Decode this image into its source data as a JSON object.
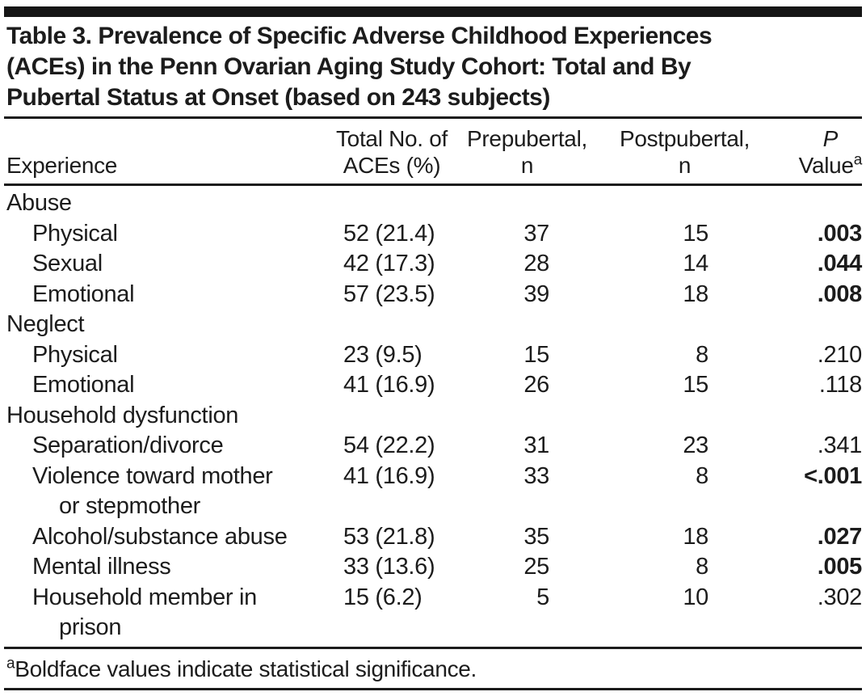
{
  "ink_color": "#1c1c1c",
  "title": {
    "lines": [
      "Table 3. Prevalence of Specific Adverse Childhood Experiences",
      "(ACEs) in the Penn Ovarian Aging Study Cohort: Total and By",
      "Pubertal Status at Onset (based on 243 subjects)"
    ]
  },
  "table": {
    "columns": [
      {
        "line1": "",
        "line2": "Experience"
      },
      {
        "line1": "Total No. of",
        "line2": "ACEs (%)"
      },
      {
        "line1": "Prepubertal,",
        "line2": "n"
      },
      {
        "line1": "Postpubertal,",
        "line2": "n"
      },
      {
        "line1": "P",
        "line2": "Value",
        "sup": "a",
        "line1_italic": true
      }
    ],
    "rows": [
      {
        "type": "group",
        "label": "Abuse"
      },
      {
        "type": "item",
        "label": "Physical",
        "total": "52 (21.4)",
        "pre": "37",
        "post": "15",
        "p": ".003",
        "p_bold": true
      },
      {
        "type": "item",
        "label": "Sexual",
        "total": "42 (17.3)",
        "pre": "28",
        "post": "14",
        "p": ".044",
        "p_bold": true
      },
      {
        "type": "item",
        "label": "Emotional",
        "total": "57 (23.5)",
        "pre": "39",
        "post": "18",
        "p": ".008",
        "p_bold": true
      },
      {
        "type": "group",
        "label": "Neglect"
      },
      {
        "type": "item",
        "label": "Physical",
        "total": "23 (9.5)",
        "pre": "15",
        "post": "8",
        "p": ".210",
        "p_bold": false
      },
      {
        "type": "item",
        "label": "Emotional",
        "total": "41 (16.9)",
        "pre": "26",
        "post": "15",
        "p": ".118",
        "p_bold": false
      },
      {
        "type": "group",
        "label": "Household dysfunction"
      },
      {
        "type": "item",
        "label": "Separation/divorce",
        "total": "54 (22.2)",
        "pre": "31",
        "post": "23",
        "p": ".341",
        "p_bold": false
      },
      {
        "type": "item",
        "label": "Violence toward mother",
        "label2": "or stepmother",
        "total": "41 (16.9)",
        "pre": "33",
        "post": "8",
        "p": "<.001",
        "p_bold": true
      },
      {
        "type": "item",
        "label": "Alcohol/substance abuse",
        "total": "53 (21.8)",
        "pre": "35",
        "post": "18",
        "p": ".027",
        "p_bold": true
      },
      {
        "type": "item",
        "label": "Mental illness",
        "total": "33 (13.6)",
        "pre": "25",
        "post": "8",
        "p": ".005",
        "p_bold": true
      },
      {
        "type": "item",
        "label": "Household member in",
        "label2": "prison",
        "total": "15 (6.2)",
        "pre": "5",
        "post": "10",
        "p": ".302",
        "p_bold": false
      }
    ]
  },
  "footnote": {
    "sup": "a",
    "text": "Boldface values indicate statistical significance."
  }
}
